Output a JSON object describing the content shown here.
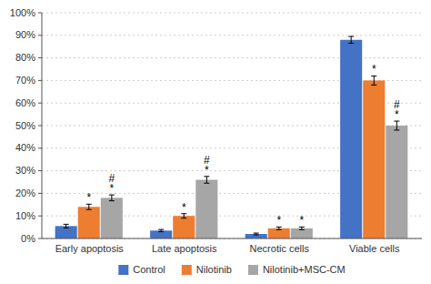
{
  "chart_data": {
    "type": "bar",
    "categories": [
      "Early apoptosis",
      "Late apoptosis",
      "Necrotic cells",
      "Viable cells"
    ],
    "series": [
      {
        "name": "Control",
        "color": "#4472C4",
        "values": [
          5.5,
          3.5,
          2.0,
          88.0
        ],
        "errors": [
          0.8,
          0.5,
          0.4,
          1.5
        ]
      },
      {
        "name": "Nilotinib",
        "color": "#ED7D31",
        "values": [
          14.0,
          10.0,
          4.5,
          70.0
        ],
        "errors": [
          1.2,
          1.0,
          0.6,
          2.0
        ]
      },
      {
        "name": "Nilotinib+MSC-CM",
        "color": "#A6A6A6",
        "values": [
          18.0,
          26.0,
          4.5,
          50.0
        ],
        "errors": [
          1.3,
          1.5,
          0.6,
          2.0
        ]
      }
    ],
    "annotations": [
      {
        "text": "*",
        "series": "Nilotinib",
        "category": "Early apoptosis"
      },
      {
        "text": "*",
        "series": "Nilotinib+MSC-CM",
        "category": "Early apoptosis"
      },
      {
        "text": "#",
        "series": "Nilotinib+MSC-CM",
        "category": "Early apoptosis"
      },
      {
        "text": "*",
        "series": "Nilotinib",
        "category": "Late apoptosis"
      },
      {
        "text": "*",
        "series": "Nilotinib+MSC-CM",
        "category": "Late apoptosis"
      },
      {
        "text": "#",
        "series": "Nilotinib+MSC-CM",
        "category": "Late apoptosis"
      },
      {
        "text": "*",
        "series": "Nilotinib",
        "category": "Necrotic cells"
      },
      {
        "text": "*",
        "series": "Nilotinib+MSC-CM",
        "category": "Necrotic cells"
      },
      {
        "text": "*",
        "series": "Nilotinib",
        "category": "Viable cells"
      },
      {
        "text": "*",
        "series": "Nilotinib+MSC-CM",
        "category": "Viable cells"
      },
      {
        "text": "#",
        "series": "Nilotinib+MSC-CM",
        "category": "Viable cells"
      }
    ],
    "ylim": [
      0,
      100
    ],
    "yticks": [
      {
        "value": 0,
        "label": "0%"
      },
      {
        "value": 10,
        "label": "10%"
      },
      {
        "value": 20,
        "label": "20%"
      },
      {
        "value": 30,
        "label": "30%"
      },
      {
        "value": 40,
        "label": "40%"
      },
      {
        "value": 50,
        "label": "50%"
      },
      {
        "value": 60,
        "label": "60%"
      },
      {
        "value": 70,
        "label": "70%"
      },
      {
        "value": 80,
        "label": "80%"
      },
      {
        "value": 90,
        "label": "90%"
      },
      {
        "value": 100,
        "label": "100%"
      }
    ],
    "grid": true,
    "legend": "bottom"
  }
}
